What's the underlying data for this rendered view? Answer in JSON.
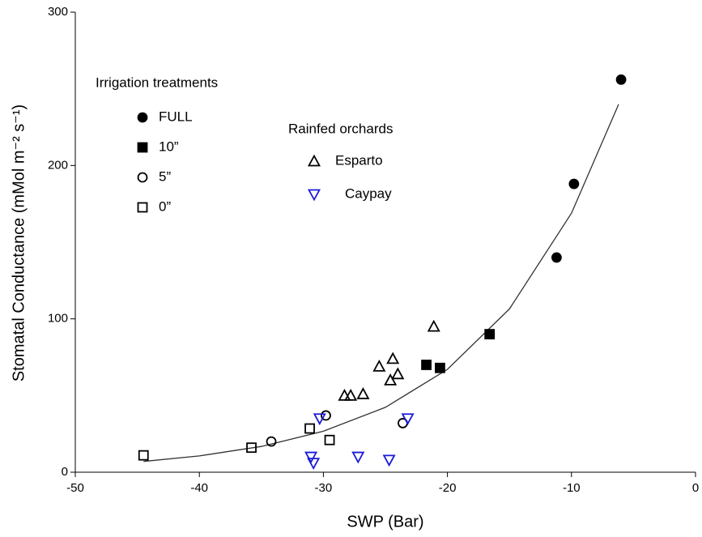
{
  "chart_data": {
    "type": "scatter",
    "x_label": "SWP (Bar)",
    "y_label": "Stomatal Conductance (mMol m⁻² s⁻¹)",
    "xlim": [
      -50,
      0
    ],
    "ylim": [
      0,
      300
    ],
    "xticks": [
      -50,
      -40,
      -30,
      -20,
      -10,
      0
    ],
    "yticks": [
      0,
      100,
      200,
      300
    ],
    "series": [
      {
        "name": "FULL",
        "color": "#000000",
        "marker": "circle-filled",
        "x": [
          -6.0,
          -9.8,
          -11.2
        ],
        "values": [
          256,
          188,
          140
        ]
      },
      {
        "name": "10”",
        "color": "#000000",
        "marker": "square-filled",
        "x": [
          -16.6,
          -21.7,
          -20.6
        ],
        "values": [
          90,
          70,
          68
        ]
      },
      {
        "name": "5”",
        "color": "#000000",
        "marker": "circle-open",
        "x": [
          -34.2,
          -29.8,
          -23.6
        ],
        "values": [
          20,
          37,
          32
        ]
      },
      {
        "name": "0”",
        "color": "#000000",
        "marker": "square-open",
        "x": [
          -44.5,
          -35.8,
          -31.1,
          -29.5
        ],
        "values": [
          11,
          16,
          28.5,
          21
        ]
      },
      {
        "name": "Esparto",
        "color": "#000000",
        "marker": "triangle-up",
        "x": [
          -21.1,
          -24.4,
          -24.0,
          -24.6,
          -25.5,
          -26.8,
          -28.3,
          -27.8
        ],
        "values": [
          95,
          74,
          64,
          60,
          69,
          51,
          50,
          50
        ]
      },
      {
        "name": "Caypay",
        "color": "#1a1adb",
        "marker": "triangle-down",
        "x": [
          -31.0,
          -30.8,
          -30.3,
          -27.2,
          -24.7,
          -23.2
        ],
        "values": [
          10,
          6,
          35,
          10,
          8,
          35
        ]
      }
    ],
    "curve": {
      "color": "#333333",
      "x": [
        -44.5,
        -40,
        -35,
        -30,
        -25,
        -20,
        -15,
        -10,
        -6.2
      ],
      "values": [
        7.0,
        10.6,
        16.8,
        26.7,
        42.3,
        67.1,
        106.5,
        168.9,
        239.9
      ]
    },
    "legend_groups": [
      {
        "title": "Irrigation treatments",
        "series": [
          0,
          1,
          2,
          3
        ]
      },
      {
        "title": "Rainfed orchards",
        "series": [
          4,
          5
        ]
      }
    ]
  }
}
